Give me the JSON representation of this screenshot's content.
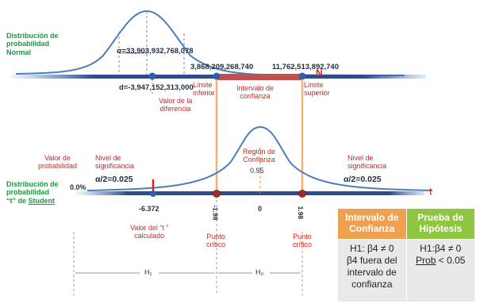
{
  "normal": {
    "title_l1": "Distribución de",
    "title_l2": "probabilidad",
    "title_l3": "Normal",
    "sigma": "σ=33,903,932,768,078",
    "d_value": "d=-3,947,152,313,000",
    "lower_value": "3,868,209,268,740",
    "upper_value": "11,762,513,892,740",
    "axis_label": "N",
    "valor_diferencia_l1": "Valor de la",
    "valor_diferencia_l2": "diferencia",
    "limite_inferior_l1": "Límite",
    "limite_inferior_l2": "inferior",
    "intervalo_l1": "Intervalo de",
    "intervalo_l2": "confianza",
    "limite_superior_l1": "Límite",
    "limite_superior_l2": "superior"
  },
  "student": {
    "title_l1": "Distribución de",
    "title_l2": "probabilidad",
    "title_l3_prefix": "“t” de ",
    "title_l3_word": "Student",
    "valor_prob_l1": "Valor de",
    "valor_prob_l2": "probabilidad",
    "prob_value": "0.0%",
    "nivel_left_l1": "Nivel de",
    "nivel_left_l2": "significancia",
    "alpha_left": "α/2=0.025",
    "region_l1": "Región de",
    "region_l2": "Confianza",
    "region_value": "0.95",
    "nivel_right_l1": "Nivel de",
    "nivel_right_l2": "significancia",
    "alpha_right": "α/2=0.025",
    "axis_label": "t",
    "t_calc": "-6.372",
    "neg_crit": "-1.98",
    "zero": "0",
    "pos_crit": "1.98",
    "valor_t_l1": "Valor del “t ”",
    "valor_t_l2": "calculado",
    "punto_l1": "Punto",
    "punto_l2": "crítico",
    "punto2_l1": "Punto",
    "punto2_l2": "crítico",
    "h1": "H₁",
    "h0": "H₀"
  },
  "table": {
    "col1_header_l1": "Intervalo de",
    "col1_header_l2": "Confianza",
    "col2_header_l1": "Prueba de",
    "col2_header_l2": "Hipótesis",
    "col1_l1": "H1: β4 ≠ 0",
    "col1_l2": "β4 fuera del",
    "col1_l3": "intervalo de",
    "col1_l4": "confianza",
    "col2_l1": "H1:β4 ≠ 0",
    "col2_l2_word": "Prob",
    "col2_l2_rest": " < 0.05"
  },
  "colors": {
    "curve": "#4a7ec0",
    "axis": "#2e4b8a",
    "interval_bar": "#c0504d",
    "connector": "#f0b27a",
    "red_text": "#e0201a",
    "green_text": "#1a9a3c",
    "orange_header": "#f0a150",
    "green_header": "#8ec63f"
  }
}
